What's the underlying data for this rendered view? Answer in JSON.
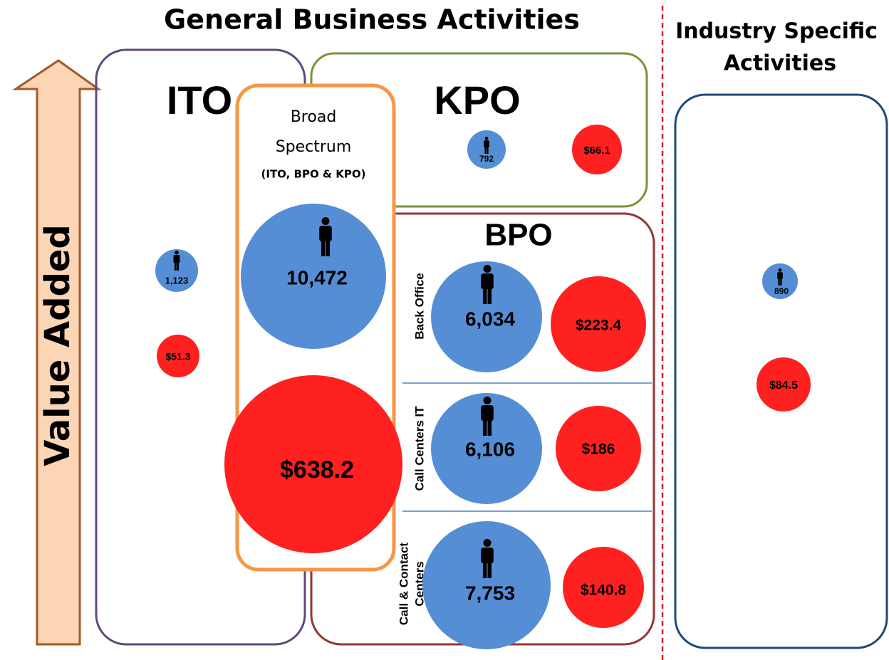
{
  "title": "General Business Activities",
  "side_title": [
    "Industry Specific",
    "Activities"
  ],
  "arrow_label": "Value Added",
  "ito": {
    "label": "ITO",
    "employees": "1,123",
    "revenue": "$51.3"
  },
  "kpo": {
    "label": "KPO",
    "employees": "792",
    "revenue": "$66.1"
  },
  "broad": {
    "label": [
      "Broad",
      "Spectrum",
      "(ITO, BPO & KPO)"
    ],
    "employees": "10,472",
    "revenue": "$638.2"
  },
  "bpo": {
    "label": "BPO",
    "rows": [
      {
        "label": [
          "Back Office"
        ],
        "employees": "6,034",
        "revenue": "$223.4"
      },
      {
        "label": [
          "Call Centers IT"
        ],
        "employees": "6,106",
        "revenue": "$186"
      },
      {
        "label": [
          "Call & Contact",
          "Centers"
        ],
        "employees": "7,753",
        "revenue": "$140.8"
      }
    ]
  },
  "industry": {
    "employees": "890",
    "revenue": "$84.5"
  }
}
